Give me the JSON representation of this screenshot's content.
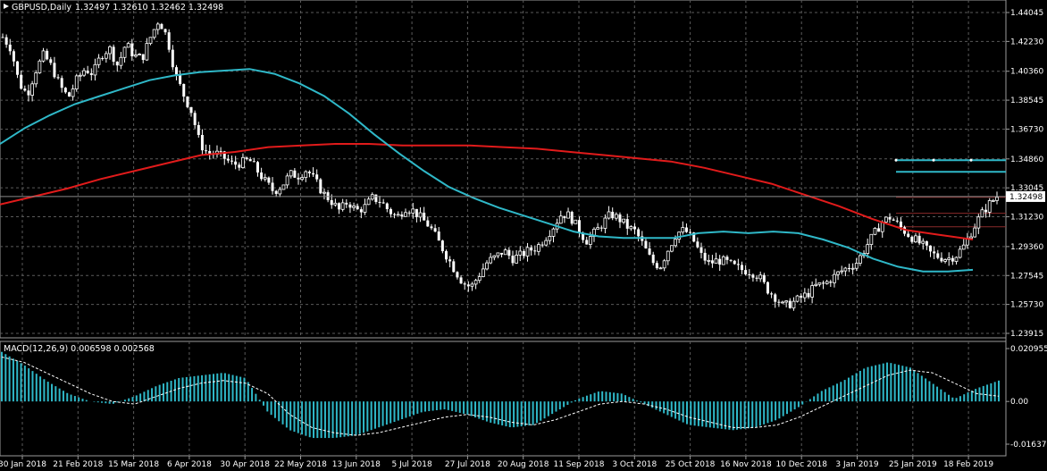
{
  "header": {
    "symbol_label": "GBPUSD,Daily",
    "ohlc": "1.32497 1.32610 1.32462 1.32498"
  },
  "macd_header": {
    "label": "MACD(12,26,9) 0.006598 0.002568"
  },
  "colors": {
    "background": "#000000",
    "grid": "#5a5a5a",
    "candle": "#ffffff",
    "ma_fast": "#2fb8c8",
    "ma_slow": "#e11b1b",
    "macd_hist": "#2fb8c8",
    "macd_signal": "#ffffff",
    "level_lines": "#2fb8c8"
  },
  "price_axis": {
    "ticks": [
      "1.44045",
      "1.42230",
      "1.40360",
      "1.38545",
      "1.36730",
      "1.34860",
      "1.33045",
      "1.31230",
      "1.29360",
      "1.27545",
      "1.25730",
      "1.23915"
    ],
    "current_price_label": "1.32498"
  },
  "macd_axis": {
    "ticks": [
      "0.020955",
      "0.00",
      "-0.016377"
    ]
  },
  "time_axis": {
    "ticks": [
      "30 Jan 2018",
      "21 Feb 2018",
      "15 Mar 2018",
      "6 Apr 2018",
      "30 Apr 2018",
      "22 May 2018",
      "13 Jun 2018",
      "5 Jul 2018",
      "27 Jul 2018",
      "20 Aug 2018",
      "11 Sep 2018",
      "3 Oct 2018",
      "25 Oct 2018",
      "16 Nov 2018",
      "10 Dec 2018",
      "3 Jan 2019",
      "25 Jan 2019",
      "18 Feb 2019"
    ]
  },
  "chart_data": {
    "type": "candlestick",
    "price_range": [
      1.23915,
      1.44045
    ],
    "macd_range": [
      -0.016377,
      0.020955
    ],
    "price_path": [
      1.425,
      1.418,
      1.396,
      1.389,
      1.404,
      1.414,
      1.406,
      1.394,
      1.387,
      1.398,
      1.405,
      1.402,
      1.414,
      1.418,
      1.407,
      1.421,
      1.413,
      1.412,
      1.425,
      1.436,
      1.425,
      1.402,
      1.389,
      1.378,
      1.358,
      1.352,
      1.352,
      1.349,
      1.345,
      1.346,
      1.348,
      1.341,
      1.334,
      1.328,
      1.332,
      1.339,
      1.338,
      1.342,
      1.335,
      1.327,
      1.322,
      1.316,
      1.322,
      1.316,
      1.318,
      1.324,
      1.322,
      1.316,
      1.312,
      1.318,
      1.316,
      1.311,
      1.306,
      1.297,
      1.288,
      1.279,
      1.271,
      1.268,
      1.276,
      1.284,
      1.287,
      1.291,
      1.286,
      1.288,
      1.291,
      1.293,
      1.299,
      1.306,
      1.314,
      1.313,
      1.305,
      1.297,
      1.302,
      1.308,
      1.314,
      1.311,
      1.306,
      1.303,
      1.294,
      1.284,
      1.281,
      1.292,
      1.302,
      1.304,
      1.298,
      1.288,
      1.283,
      1.285,
      1.284,
      1.281,
      1.279,
      1.278,
      1.275,
      1.267,
      1.262,
      1.256,
      1.258,
      1.261,
      1.264,
      1.269,
      1.27,
      1.274,
      1.278,
      1.281,
      1.284,
      1.293,
      1.301,
      1.309,
      1.312,
      1.307,
      1.302,
      1.298,
      1.294,
      1.289,
      1.287,
      1.286,
      1.288,
      1.294,
      1.304,
      1.313,
      1.32,
      1.325
    ],
    "ma_fast": [
      1.358,
      1.368,
      1.376,
      1.383,
      1.388,
      1.393,
      1.398,
      1.401,
      1.403,
      1.404,
      1.405,
      1.402,
      1.396,
      1.388,
      1.377,
      1.364,
      1.352,
      1.341,
      1.331,
      1.324,
      1.318,
      1.313,
      1.308,
      1.303,
      1.3,
      1.299,
      1.299,
      1.299,
      1.302,
      1.303,
      1.302,
      1.303,
      1.302,
      1.298,
      1.293,
      1.286,
      1.281,
      1.278,
      1.278,
      1.279
    ],
    "ma_slow": [
      1.32,
      1.325,
      1.33,
      1.336,
      1.341,
      1.346,
      1.351,
      1.353,
      1.356,
      1.357,
      1.358,
      1.358,
      1.357,
      1.357,
      1.357,
      1.356,
      1.355,
      1.353,
      1.351,
      1.349,
      1.347,
      1.343,
      1.338,
      1.333,
      1.326,
      1.319,
      1.311,
      1.304,
      1.301,
      1.298
    ],
    "resistance_levels": [
      1.3478,
      1.3405
    ],
    "macd_hist": [
      0.019,
      0.014,
      0.008,
      0.003,
      0.0,
      -0.001,
      0.002,
      0.006,
      0.009,
      0.01,
      0.011,
      0.009,
      -0.004,
      -0.011,
      -0.014,
      -0.014,
      -0.013,
      -0.01,
      -0.007,
      -0.004,
      -0.003,
      -0.005,
      -0.008,
      -0.01,
      -0.009,
      -0.004,
      0.001,
      0.004,
      0.003,
      -0.001,
      -0.005,
      -0.009,
      -0.01,
      -0.011,
      -0.01,
      -0.007,
      -0.002,
      0.004,
      0.008,
      0.013,
      0.015,
      0.013,
      0.007,
      0.001,
      0.005,
      0.008
    ],
    "macd_signal": [
      0.017,
      0.015,
      0.011,
      0.007,
      0.003,
      0.0,
      -0.001,
      0.002,
      0.005,
      0.007,
      0.008,
      0.007,
      0.003,
      -0.005,
      -0.01,
      -0.012,
      -0.013,
      -0.012,
      -0.01,
      -0.008,
      -0.006,
      -0.005,
      -0.006,
      -0.008,
      -0.009,
      -0.007,
      -0.004,
      -0.001,
      0.0,
      -0.001,
      -0.003,
      -0.006,
      -0.008,
      -0.01,
      -0.01,
      -0.009,
      -0.006,
      -0.002,
      0.002,
      0.006,
      0.01,
      0.012,
      0.011,
      0.007,
      0.003,
      0.002
    ]
  }
}
